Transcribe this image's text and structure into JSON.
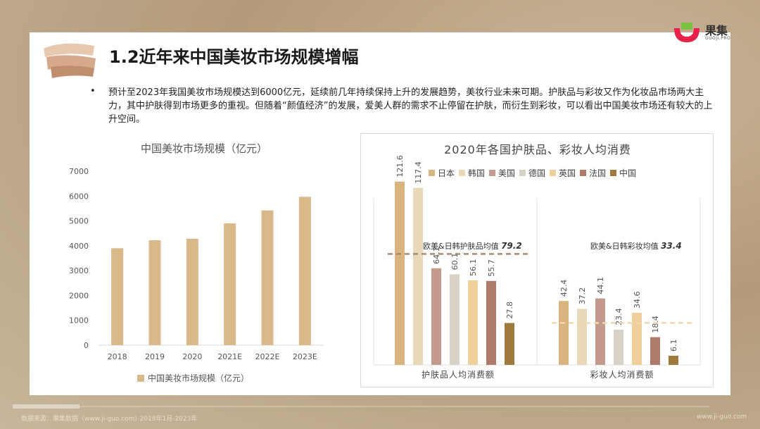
{
  "page": {
    "title": "1.2近年来中国美妆市场规模增幅",
    "bullet": "预计至2023年我国美妆市场规模达到6000亿元，延续前几年持续保持上升的发展趋势，美妆行业未来可期。护肤品与彩妆又作为化妆品市场两大主力，其中护肤得到市场更多的重视。但随着“颜值经济”的发展，爱美人群的需求不止停留在护肤，而衍生到彩妆，可以看出中国美妆市场还有较大的上升空间。",
    "logo_text": "果集",
    "logo_sub": "GUOJI.PRO",
    "footer_source": "数据来源：果集数据（www.ji-guo.com）·2018年1月-2023年",
    "footer_url": "www.ji-guo.com"
  },
  "colors": {
    "bar_main": "#d9b88a",
    "japan": "#d9b47f",
    "korea": "#ead9b9",
    "usa": "#c49a8c",
    "germany": "#d7d1c6",
    "uk": "#f0cf9a",
    "france": "#b07a6a",
    "china": "#9e7a3c",
    "avg_skin": "#a88d70",
    "avg_makeup": "#f1d9b0"
  },
  "chart_data": [
    {
      "type": "bar",
      "title": "中国美妆市场规模（亿元）",
      "categories": [
        "2018",
        "2019",
        "2020",
        "2021E",
        "2022E",
        "2023E"
      ],
      "values": [
        3900,
        4220,
        4280,
        4900,
        5420,
        5970
      ],
      "ylim": [
        0,
        7000
      ],
      "yticks": [
        "0",
        "1000",
        "2000",
        "3000",
        "4000",
        "5000",
        "6000",
        "7000"
      ],
      "legend": "中国美妆市场规模（亿元）",
      "legend_position": "bottom"
    },
    {
      "type": "bar",
      "title": "2020年各国护肤品、彩妆人均消费",
      "legend_position": "top",
      "series_names": [
        "日本",
        "韩国",
        "美国",
        "德国",
        "英国",
        "法国",
        "中国"
      ],
      "groups": [
        {
          "name": "护肤品人均消费额",
          "values": [
            121.6,
            117.4,
            64.1,
            60.1,
            56.1,
            55.7,
            27.8
          ],
          "labels": [
            "121.6",
            "117.4",
            "64.1",
            "60.1",
            "56.1",
            "55.7",
            "27.8"
          ],
          "avg_label": "欧美&日韩护肤品均值",
          "avg_value": 79.2,
          "avg_value_label": "79.2"
        },
        {
          "name": "彩妆人均消费额",
          "values": [
            42.4,
            37.2,
            44.1,
            23.4,
            34.6,
            18.4,
            6.1
          ],
          "labels": [
            "42.4",
            "37.2",
            "44.1",
            "23.4",
            "34.6",
            "18.4",
            "6.1"
          ],
          "avg_label": "欧美&日韩彩妆均值",
          "avg_value": 33.4,
          "avg_value_label": "33.4"
        }
      ]
    }
  ]
}
